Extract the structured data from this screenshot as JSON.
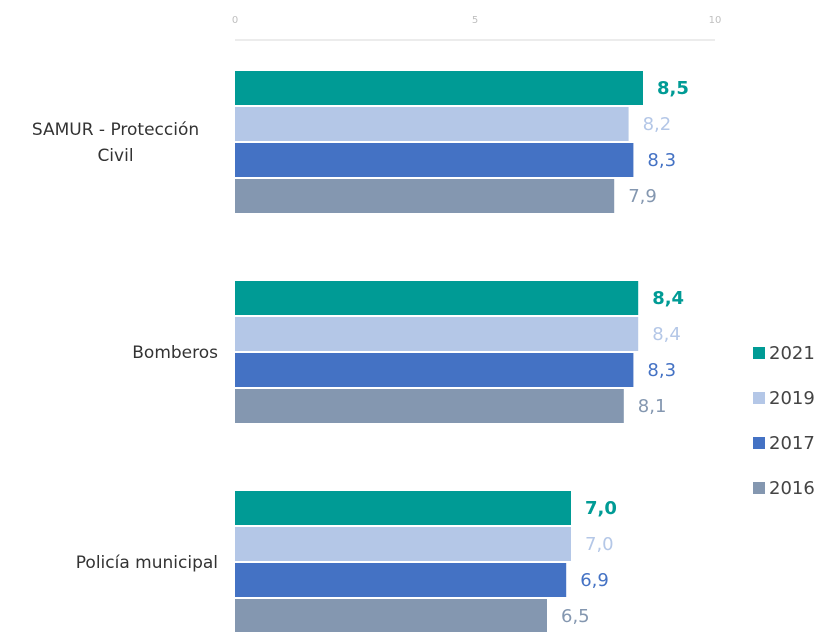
{
  "chart_data": {
    "type": "hbar",
    "categories": [
      "SAMUR - Protección Civil",
      "Bomberos",
      "Policía municipal"
    ],
    "series": [
      {
        "name": "2021",
        "color": "#009b95",
        "values": [
          8.5,
          8.4,
          7.0
        ],
        "value_labels": [
          "8,5",
          "8,4",
          "7,0"
        ]
      },
      {
        "name": "2019",
        "color": "#b4c7e7",
        "values": [
          8.2,
          8.4,
          7.0
        ],
        "value_labels": [
          "8,2",
          "8,4",
          "7,0"
        ]
      },
      {
        "name": "2017",
        "color": "#4472c4",
        "values": [
          8.3,
          8.3,
          6.9
        ],
        "value_labels": [
          "8,3",
          "8,3",
          "6,9"
        ]
      },
      {
        "name": "2016",
        "color": "#8497b0",
        "values": [
          7.9,
          8.1,
          6.5
        ],
        "value_labels": [
          "7,9",
          "8,1",
          "6,5"
        ]
      }
    ],
    "xlim": [
      0,
      10
    ],
    "xticks": [
      0,
      5,
      10
    ],
    "legend": "right"
  }
}
